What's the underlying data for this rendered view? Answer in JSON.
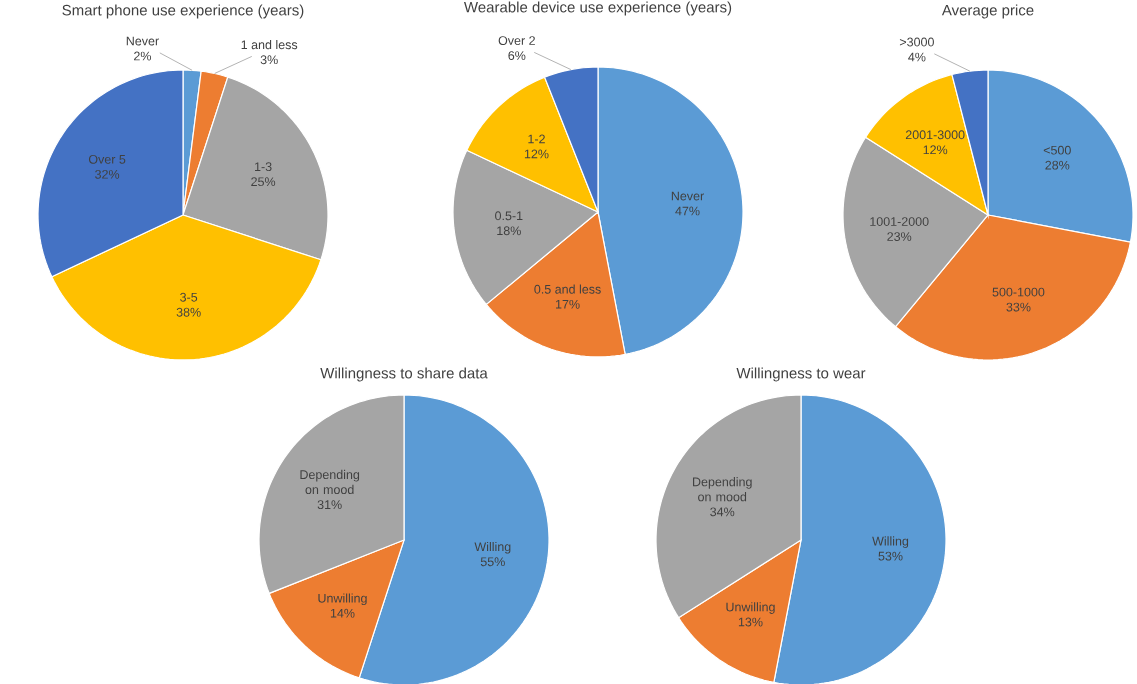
{
  "chart_data": [
    {
      "type": "pie",
      "title": "Smart phone use experience (years)",
      "categories": [
        "Never",
        "1 and less",
        "1-3",
        "3-5",
        "Over 5"
      ],
      "values": [
        2,
        3,
        25,
        38,
        32
      ],
      "value_labels": [
        "2%",
        "3%",
        "25%",
        "38%",
        "32%"
      ],
      "colors": [
        "#5b9bd5",
        "#ed7d31",
        "#a5a5a5",
        "#ffc000",
        "#4472c4"
      ]
    },
    {
      "type": "pie",
      "title": "Wearable device use experience (years)",
      "categories": [
        "Never",
        "0.5 and less",
        "0.5-1",
        "1-2",
        "Over 2"
      ],
      "values": [
        47,
        17,
        18,
        12,
        6
      ],
      "value_labels": [
        "47%",
        "17%",
        "18%",
        "12%",
        "6%"
      ],
      "colors": [
        "#5b9bd5",
        "#ed7d31",
        "#a5a5a5",
        "#ffc000",
        "#4472c4"
      ]
    },
    {
      "type": "pie",
      "title": "Average price",
      "categories": [
        "<500",
        "500-1000",
        "1001-2000",
        "2001-3000",
        ">3000"
      ],
      "values": [
        28,
        33,
        23,
        12,
        4
      ],
      "value_labels": [
        "28%",
        "33%",
        "23%",
        "12%",
        "4%"
      ],
      "colors": [
        "#5b9bd5",
        "#ed7d31",
        "#a5a5a5",
        "#ffc000",
        "#4472c4"
      ]
    },
    {
      "type": "pie",
      "title": "Willingness to share data",
      "categories": [
        "Willing",
        "Unwilling",
        "Depending on mood"
      ],
      "values": [
        55,
        14,
        31
      ],
      "value_labels": [
        "55%",
        "14%",
        "31%"
      ],
      "colors": [
        "#5b9bd5",
        "#ed7d31",
        "#a5a5a5"
      ]
    },
    {
      "type": "pie",
      "title": "Willingness to wear",
      "categories": [
        "Willing",
        "Unwilling",
        "Depending on mood"
      ],
      "values": [
        53,
        13,
        34
      ],
      "value_labels": [
        "53%",
        "13%",
        "34%"
      ],
      "colors": [
        "#5b9bd5",
        "#ed7d31",
        "#a5a5a5"
      ]
    }
  ]
}
